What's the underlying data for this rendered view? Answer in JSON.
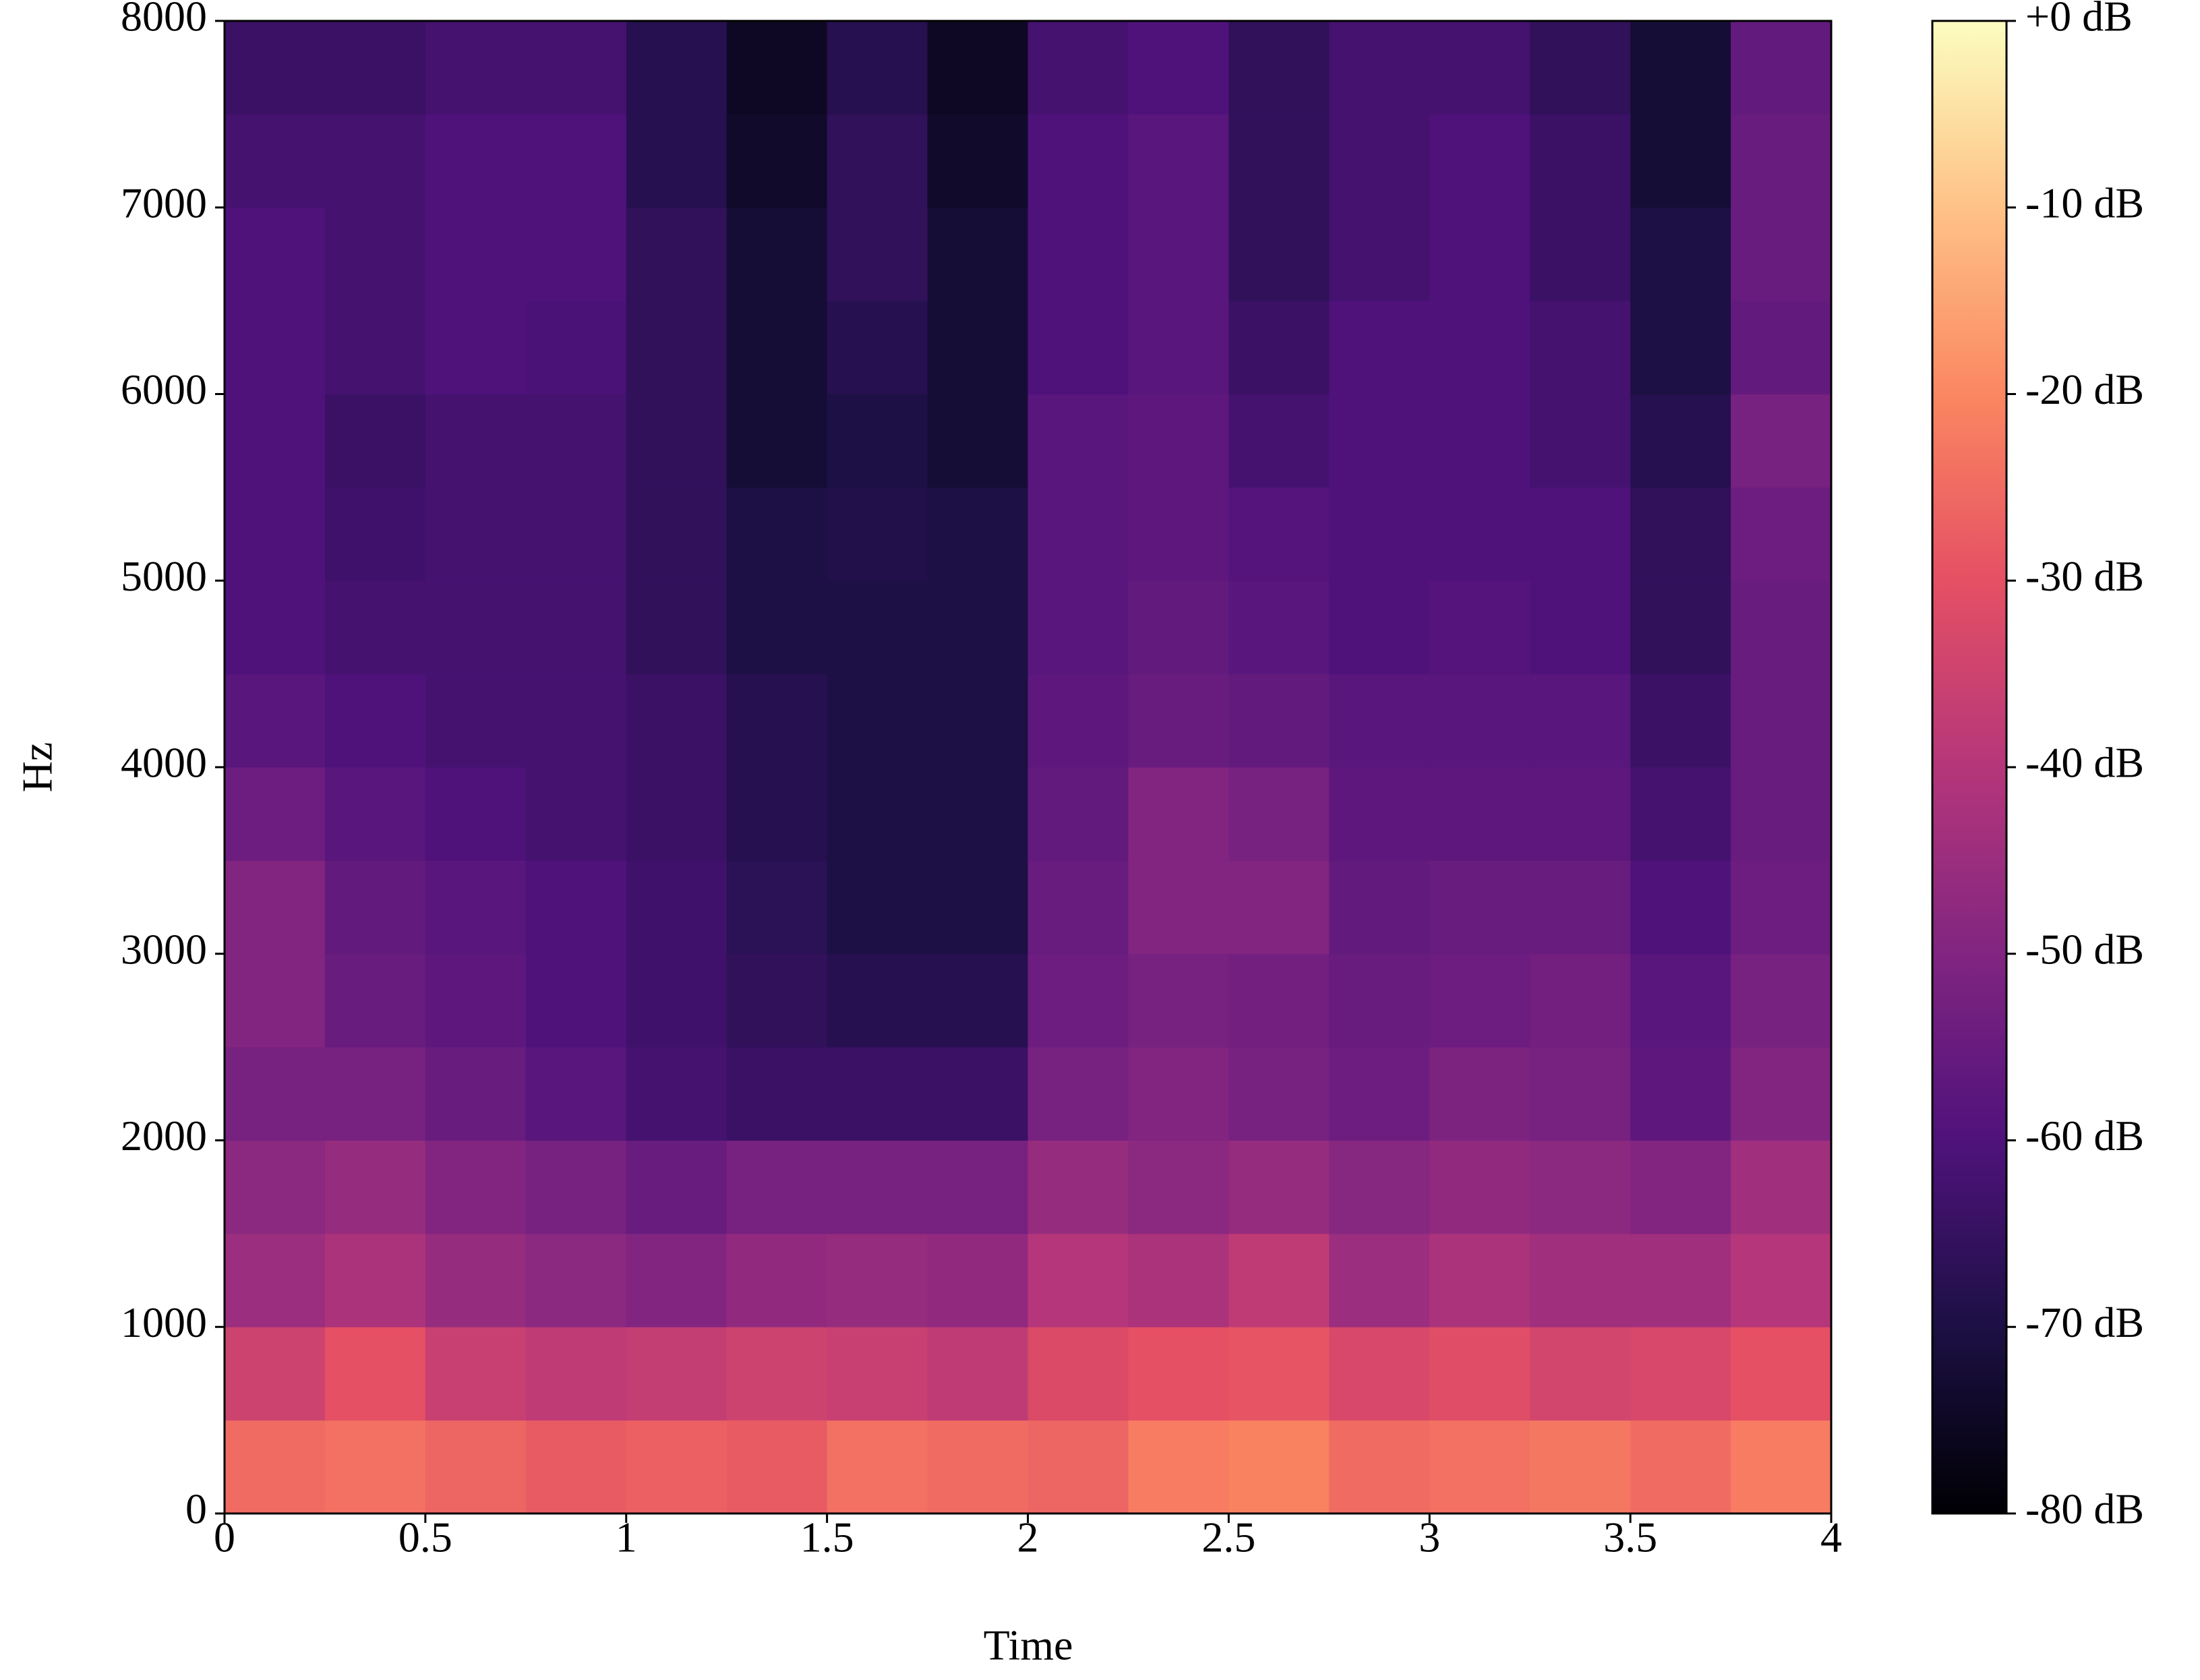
{
  "chart_data": {
    "type": "heatmap",
    "xlabel": "Time",
    "ylabel": "Hz",
    "colormap": "magma",
    "x": [
      0,
      0.25,
      0.5,
      0.75,
      1,
      1.25,
      1.5,
      1.75,
      2,
      2.25,
      2.5,
      2.75,
      3,
      3.25,
      3.5,
      3.75
    ],
    "y": [
      0,
      500,
      1000,
      1500,
      2000,
      2500,
      3000,
      3500,
      4000,
      4500,
      5000,
      5500,
      6000,
      6500,
      7000,
      7500
    ],
    "values": [
      [
        -25,
        -24,
        -26,
        -28,
        -27,
        -28,
        -24,
        -25,
        -26,
        -22,
        -21,
        -25,
        -24,
        -23,
        -25,
        -22
      ],
      [
        -35,
        -30,
        -36,
        -38,
        -37,
        -35,
        -36,
        -38,
        -32,
        -30,
        -29,
        -33,
        -31,
        -34,
        -33,
        -30
      ],
      [
        -45,
        -42,
        -46,
        -48,
        -50,
        -47,
        -46,
        -47,
        -40,
        -42,
        -38,
        -45,
        -42,
        -44,
        -44,
        -40
      ],
      [
        -48,
        -46,
        -50,
        -52,
        -55,
        -52,
        -52,
        -52,
        -46,
        -48,
        -46,
        -49,
        -47,
        -48,
        -50,
        -44
      ],
      [
        -52,
        -52,
        -55,
        -58,
        -62,
        -64,
        -64,
        -64,
        -52,
        -50,
        -52,
        -54,
        -51,
        -52,
        -57,
        -50
      ],
      [
        -50,
        -55,
        -57,
        -60,
        -63,
        -66,
        -68,
        -68,
        -54,
        -52,
        -53,
        -55,
        -54,
        -53,
        -58,
        -52
      ],
      [
        -50,
        -56,
        -58,
        -60,
        -63,
        -67,
        -70,
        -70,
        -55,
        -50,
        -50,
        -56,
        -55,
        -55,
        -60,
        -54
      ],
      [
        -54,
        -58,
        -60,
        -62,
        -64,
        -68,
        -70,
        -70,
        -56,
        -50,
        -52,
        -57,
        -57,
        -57,
        -62,
        -55
      ],
      [
        -58,
        -60,
        -62,
        -62,
        -64,
        -68,
        -70,
        -70,
        -57,
        -55,
        -56,
        -58,
        -58,
        -58,
        -64,
        -55
      ],
      [
        -60,
        -62,
        -62,
        -62,
        -66,
        -70,
        -70,
        -70,
        -58,
        -56,
        -58,
        -60,
        -59,
        -60,
        -66,
        -55
      ],
      [
        -60,
        -63,
        -62,
        -62,
        -66,
        -70,
        -69,
        -70,
        -58,
        -57,
        -59,
        -60,
        -60,
        -60,
        -66,
        -54
      ],
      [
        -60,
        -64,
        -62,
        -62,
        -66,
        -72,
        -70,
        -72,
        -58,
        -57,
        -62,
        -60,
        -60,
        -62,
        -68,
        -52
      ],
      [
        -60,
        -62,
        -60,
        -61,
        -66,
        -72,
        -68,
        -72,
        -60,
        -58,
        -64,
        -60,
        -60,
        -62,
        -70,
        -56
      ],
      [
        -60,
        -62,
        -60,
        -60,
        -66,
        -72,
        -66,
        -72,
        -60,
        -58,
        -66,
        -62,
        -60,
        -64,
        -70,
        -55
      ],
      [
        -62,
        -62,
        -60,
        -60,
        -68,
        -74,
        -66,
        -74,
        -60,
        -58,
        -66,
        -62,
        -60,
        -64,
        -72,
        -55
      ],
      [
        -64,
        -64,
        -62,
        -62,
        -68,
        -75,
        -68,
        -75,
        -62,
        -60,
        -66,
        -62,
        -62,
        -66,
        -72,
        -56
      ]
    ],
    "xlim": [
      0,
      4
    ],
    "xticks": [
      0,
      0.5,
      1,
      1.5,
      2,
      2.5,
      3,
      3.5,
      4
    ],
    "ylim": [
      0,
      8000
    ],
    "yticks": [
      0,
      1000,
      2000,
      3000,
      4000,
      5000,
      6000,
      7000,
      8000
    ],
    "clim": [
      -80,
      0
    ],
    "cticks": [
      {
        "value": 0,
        "label": "+0 dB"
      },
      {
        "value": -10,
        "label": "-10 dB"
      },
      {
        "value": -20,
        "label": "-20 dB"
      },
      {
        "value": -30,
        "label": "-30 dB"
      },
      {
        "value": -40,
        "label": "-40 dB"
      },
      {
        "value": -50,
        "label": "-50 dB"
      },
      {
        "value": -60,
        "label": "-60 dB"
      },
      {
        "value": -70,
        "label": "-70 dB"
      },
      {
        "value": -80,
        "label": "-80 dB"
      }
    ]
  }
}
